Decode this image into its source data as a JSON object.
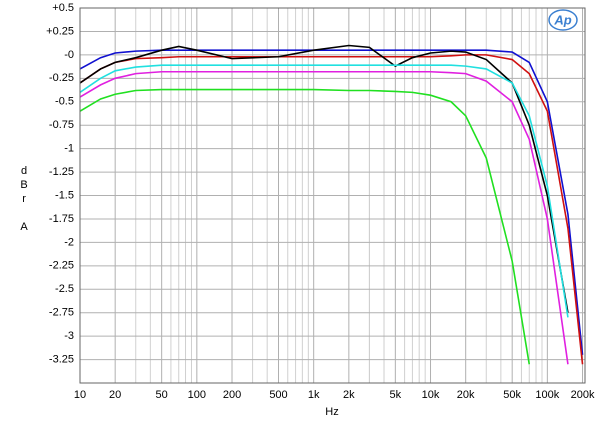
{
  "chart_data": {
    "type": "line",
    "y_label": "dBr A",
    "x_label": "Hz",
    "logo": "Ap",
    "x": [
      10,
      15,
      20,
      30,
      50,
      70,
      100,
      200,
      500,
      1000,
      2000,
      3000,
      5000,
      7000,
      10000,
      15000,
      20000,
      30000,
      50000,
      70000,
      100000,
      150000,
      200000
    ],
    "series": [
      {
        "name": "blue",
        "color": "#1010d0",
        "values": [
          -0.15,
          -0.03,
          0.02,
          0.04,
          0.05,
          0.05,
          0.05,
          0.05,
          0.05,
          0.05,
          0.05,
          0.05,
          0.05,
          0.05,
          0.05,
          0.05,
          0.05,
          0.05,
          0.03,
          -0.08,
          -0.5,
          -1.7,
          -3.2
        ]
      },
      {
        "name": "red",
        "color": "#d01010",
        "values": [
          -0.3,
          -0.15,
          -0.08,
          -0.04,
          -0.03,
          -0.02,
          -0.02,
          -0.02,
          -0.02,
          -0.02,
          -0.02,
          -0.02,
          -0.02,
          -0.02,
          -0.02,
          -0.01,
          0.0,
          0.0,
          -0.05,
          -0.2,
          -0.6,
          -1.85,
          -3.3
        ]
      },
      {
        "name": "black",
        "color": "#000000",
        "values": [
          -0.3,
          -0.15,
          -0.08,
          -0.03,
          0.05,
          0.09,
          0.05,
          -0.04,
          -0.02,
          0.05,
          0.1,
          0.08,
          -0.12,
          -0.03,
          0.02,
          0.04,
          0.03,
          -0.05,
          -0.3,
          -0.75,
          -1.5,
          -2.75,
          null
        ]
      },
      {
        "name": "cyan",
        "color": "#20e0e0",
        "values": [
          -0.4,
          -0.25,
          -0.17,
          -0.13,
          -0.11,
          -0.11,
          -0.11,
          -0.11,
          -0.11,
          -0.11,
          -0.11,
          -0.11,
          -0.11,
          -0.11,
          -0.11,
          -0.11,
          -0.12,
          -0.15,
          -0.3,
          -0.65,
          -1.4,
          -2.8,
          null
        ]
      },
      {
        "name": "magenta",
        "color": "#e020e0",
        "values": [
          -0.45,
          -0.32,
          -0.25,
          -0.2,
          -0.18,
          -0.18,
          -0.18,
          -0.18,
          -0.18,
          -0.18,
          -0.18,
          -0.18,
          -0.18,
          -0.18,
          -0.18,
          -0.19,
          -0.2,
          -0.28,
          -0.5,
          -0.9,
          -1.75,
          -3.3,
          null
        ]
      },
      {
        "name": "green",
        "color": "#20e020",
        "values": [
          -0.6,
          -0.47,
          -0.42,
          -0.38,
          -0.37,
          -0.37,
          -0.37,
          -0.37,
          -0.37,
          -0.37,
          -0.38,
          -0.38,
          -0.39,
          -0.4,
          -0.43,
          -0.5,
          -0.65,
          -1.1,
          -2.2,
          -3.3,
          null,
          null,
          null
        ]
      }
    ],
    "xlim": [
      10,
      210000
    ],
    "ylim": [
      -3.5,
      0.5
    ],
    "log_x": true,
    "grid": true,
    "xticks": [
      10,
      20,
      50,
      100,
      200,
      500,
      {
        "value": 1000,
        "label": "1k"
      },
      {
        "value": 2000,
        "label": "2k"
      },
      {
        "value": 5000,
        "label": "5k"
      },
      {
        "value": 10000,
        "label": "10k"
      },
      {
        "value": 20000,
        "label": "20k"
      },
      {
        "value": 50000,
        "label": "50k"
      },
      {
        "value": 100000,
        "label": "100k"
      },
      {
        "value": 200000,
        "label": "200k"
      }
    ],
    "xminor": [
      30,
      40,
      60,
      70,
      80,
      90,
      300,
      400,
      600,
      700,
      800,
      900,
      3000,
      4000,
      6000,
      7000,
      8000,
      9000,
      30000,
      40000,
      60000,
      70000,
      80000,
      90000,
      300000,
      400000,
      600000,
      700000,
      800000,
      900000,
      3000,
      4000
    ],
    "yticks": [
      {
        "value": 0.5,
        "label": "+0.5"
      },
      {
        "value": 0.25,
        "label": "+0.25"
      },
      {
        "value": 0,
        "label": "-0"
      },
      -0.25,
      -0.5,
      -0.75,
      -1,
      -1.25,
      -1.5,
      -1.75,
      -2,
      -2.25,
      -2.5,
      -2.75,
      -3,
      -3.25
    ]
  }
}
